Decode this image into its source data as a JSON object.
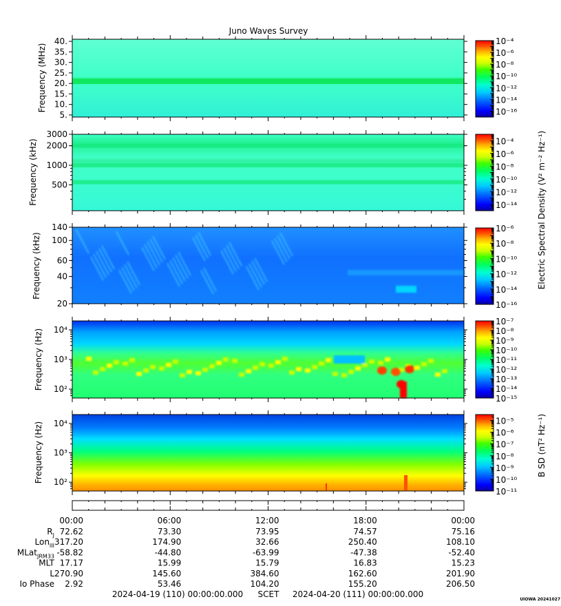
{
  "chart_data": [
    {
      "type": "heatmap",
      "title": "Juno Waves Survey",
      "ylabel": "Frequency (MHz)",
      "ylim": [
        4,
        41
      ],
      "yscale": "linear",
      "yticks": [
        {
          "v": 40,
          "t": "40."
        },
        {
          "v": 35,
          "t": "35."
        },
        {
          "v": 30,
          "t": "30."
        },
        {
          "v": 25,
          "t": "25."
        },
        {
          "v": 20,
          "t": "20."
        },
        {
          "v": 15,
          "t": "15."
        },
        {
          "v": 10,
          "t": "10."
        },
        {
          "v": 5,
          "t": "5."
        }
      ],
      "colorbar": {
        "min_exp": -17,
        "max_exp": -4,
        "labels": [
          -4,
          -6,
          -8,
          -10,
          -12,
          -14,
          -16
        ],
        "label": ""
      }
    },
    {
      "type": "heatmap",
      "title": "",
      "ylabel": "Frequency (kHz)",
      "ylim": [
        200,
        3000
      ],
      "yscale": "log",
      "yticks": [
        {
          "v": 3000,
          "t": "3000"
        },
        {
          "v": 2000,
          "t": "2000"
        },
        {
          "v": 1000,
          "t": "1000"
        },
        {
          "v": 500,
          "t": "500"
        }
      ],
      "colorbar": {
        "min_exp": -15,
        "max_exp": -3,
        "labels": [
          -4,
          -6,
          -8,
          -10,
          -12,
          -14
        ],
        "label": "Electric Spectral Density (V² m⁻² Hz⁻¹)"
      }
    },
    {
      "type": "heatmap",
      "title": "",
      "ylabel": "Frequency (kHz)",
      "ylim": [
        20,
        140
      ],
      "yscale": "log",
      "yticks": [
        {
          "v": 140,
          "t": "140"
        },
        {
          "v": 100,
          "t": "100"
        },
        {
          "v": 60,
          "t": "60"
        },
        {
          "v": 40,
          "t": "40"
        },
        {
          "v": 20,
          "t": "20"
        }
      ],
      "colorbar": {
        "min_exp": -16,
        "max_exp": -6,
        "labels": [
          -6,
          -8,
          -10,
          -12,
          -14,
          -16
        ],
        "label": ""
      }
    },
    {
      "type": "heatmap",
      "title": "",
      "ylabel": "Frequency (Hz)",
      "ylim": [
        50,
        20000
      ],
      "yscale": "log",
      "yticks": [
        {
          "v": 10000,
          "t": "10⁴"
        },
        {
          "v": 1000,
          "t": "10³"
        },
        {
          "v": 100,
          "t": "10²"
        }
      ],
      "colorbar": {
        "min_exp": -15,
        "max_exp": -7,
        "labels": [
          -7,
          -8,
          -9,
          -10,
          -11,
          -12,
          -13,
          -14,
          -15
        ],
        "label": ""
      }
    },
    {
      "type": "heatmap",
      "title": "",
      "ylabel": "Frequency (Hz)",
      "ylim": [
        50,
        20000
      ],
      "yscale": "log",
      "yticks": [
        {
          "v": 10000,
          "t": "10⁴"
        },
        {
          "v": 1000,
          "t": "10³"
        },
        {
          "v": 100,
          "t": "10²"
        }
      ],
      "colorbar": {
        "min_exp": -11,
        "max_exp": -4.5,
        "labels": [
          -5,
          -6,
          -7,
          -8,
          -9,
          -10,
          -11
        ],
        "label": "B SD (nT² Hz⁻¹)"
      }
    }
  ],
  "ephemeris": {
    "time_ticks": [
      "00:00",
      "06:00",
      "12:00",
      "18:00",
      "00:00"
    ],
    "rows": [
      {
        "label": "R",
        "sub": "J",
        "values": [
          "72.62",
          "73.30",
          "73.95",
          "74.57",
          "75.16"
        ]
      },
      {
        "label": "Lon",
        "sub": "III",
        "values": [
          "317.20",
          "174.90",
          "32.66",
          "250.40",
          "108.10"
        ]
      },
      {
        "label": "MLat",
        "sub": "JRM33",
        "values": [
          "-58.82",
          "-44.80",
          "-63.99",
          "-47.38",
          "-52.40"
        ]
      },
      {
        "label": "MLT",
        "sub": "",
        "values": [
          "17.17",
          "15.99",
          "15.79",
          "16.83",
          "15.23"
        ]
      },
      {
        "label": "L",
        "sub": "",
        "values": [
          "270.90",
          "145.60",
          "384.60",
          "162.60",
          "201.90"
        ]
      },
      {
        "label": "Io Phase",
        "sub": "",
        "values": [
          "2.92",
          "53.46",
          "104.20",
          "155.20",
          "206.50"
        ]
      }
    ]
  },
  "footer": {
    "start": "2024-04-19 (110) 00:00:00.000",
    "center": "SCET",
    "end": "2024-04-20 (111) 00:00:00.000",
    "stamp": "UIOWA 20241027"
  }
}
